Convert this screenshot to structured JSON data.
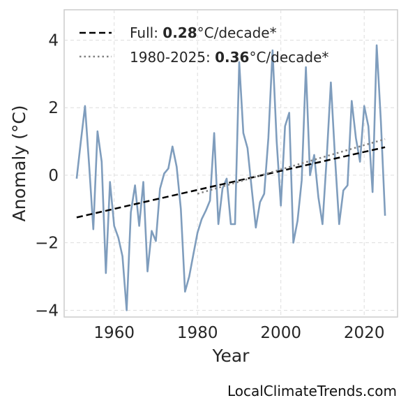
{
  "credit": "LocalClimateTrends.com",
  "chart_data": {
    "type": "line",
    "xlabel": "Year",
    "ylabel": "Anomaly (°C)",
    "xlim": [
      1948,
      2028
    ],
    "ylim": [
      -4.2,
      4.9
    ],
    "xticks": [
      1960,
      1980,
      2000,
      2020
    ],
    "yticks": [
      -4,
      -2,
      0,
      2,
      4
    ],
    "ytick_labels": [
      "−4",
      "−2",
      "0",
      "2",
      "4"
    ],
    "grid": true,
    "legend_position": "upper-left",
    "colors": {
      "series": "#7f9dbd",
      "full_trend": "#000000",
      "recent_trend": "#808080"
    },
    "series": [
      {
        "x": [
          1951,
          1952,
          1953,
          1954,
          1955,
          1956,
          1957,
          1958,
          1959,
          1960,
          1961,
          1962,
          1963,
          1964,
          1965,
          1966,
          1967,
          1968,
          1969,
          1970,
          1971,
          1972,
          1973,
          1974,
          1975,
          1976,
          1977,
          1978,
          1979,
          1980,
          1981,
          1982,
          1983,
          1984,
          1985,
          1986,
          1987,
          1988,
          1989,
          1990,
          1991,
          1992,
          1993,
          1994,
          1995,
          1996,
          1997,
          1998,
          1999,
          2000,
          2001,
          2002,
          2003,
          2004,
          2005,
          2006,
          2007,
          2008,
          2009,
          2010,
          2011,
          2012,
          2013,
          2014,
          2015,
          2016,
          2017,
          2018,
          2019,
          2020,
          2021,
          2022,
          2023,
          2024,
          2025
        ],
        "y": [
          -0.1,
          1.0,
          2.05,
          0.3,
          -1.6,
          1.3,
          0.4,
          -2.9,
          -0.2,
          -1.5,
          -1.85,
          -2.4,
          -4.0,
          -1.1,
          -0.3,
          -1.5,
          -0.2,
          -2.85,
          -1.65,
          -1.95,
          -0.4,
          0.05,
          0.2,
          0.85,
          0.25,
          -1.0,
          -3.45,
          -3.0,
          -2.35,
          -1.7,
          -1.3,
          -1.05,
          -0.75,
          1.25,
          -1.45,
          -0.4,
          -0.1,
          -1.45,
          -1.45,
          3.35,
          1.25,
          0.8,
          -0.4,
          -1.55,
          -0.8,
          -0.55,
          1.1,
          3.7,
          1.0,
          -0.9,
          1.45,
          1.85,
          -2.0,
          -1.35,
          -0.15,
          3.2,
          0.0,
          0.6,
          -0.65,
          -1.45,
          0.5,
          2.75,
          0.5,
          -1.45,
          -0.45,
          -0.3,
          2.2,
          1.1,
          0.4,
          2.05,
          1.45,
          -0.5,
          3.85,
          1.6,
          -1.2
        ]
      }
    ],
    "trends": [
      {
        "label_prefix": "Full: ",
        "label_value": "0.28",
        "label_suffix": "°C/decade*",
        "style": "dashed",
        "x": [
          1951,
          2025
        ],
        "y": [
          -1.25,
          0.83
        ]
      },
      {
        "label_prefix": "1980-2025: ",
        "label_value": "0.36",
        "label_suffix": "°C/decade*",
        "style": "dotted",
        "x": [
          1980,
          2025
        ],
        "y": [
          -0.55,
          1.07
        ]
      }
    ]
  }
}
